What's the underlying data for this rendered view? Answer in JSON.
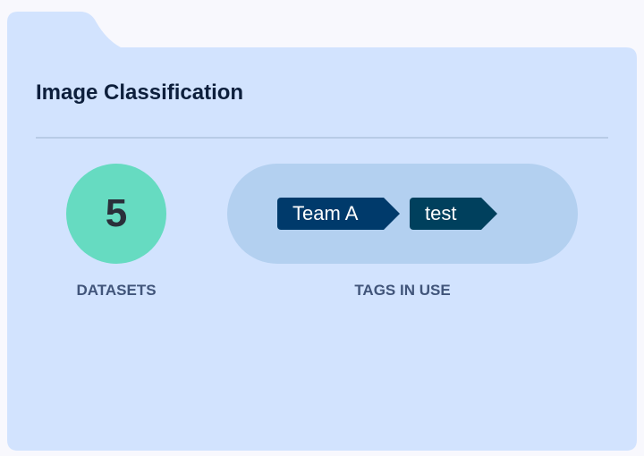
{
  "card": {
    "title": "Image Classification"
  },
  "datasets": {
    "count": "5",
    "label": "DATASETS"
  },
  "tags": {
    "label": "TAGS IN USE",
    "items": [
      {
        "name": "Team A",
        "color": "#003a6b"
      },
      {
        "name": "test",
        "color": "#00405d"
      }
    ]
  },
  "colors": {
    "background": "#f8f8fd",
    "card": "#d2e3fe",
    "circle": "#66dbc1",
    "pill": "#b3d0f0"
  }
}
